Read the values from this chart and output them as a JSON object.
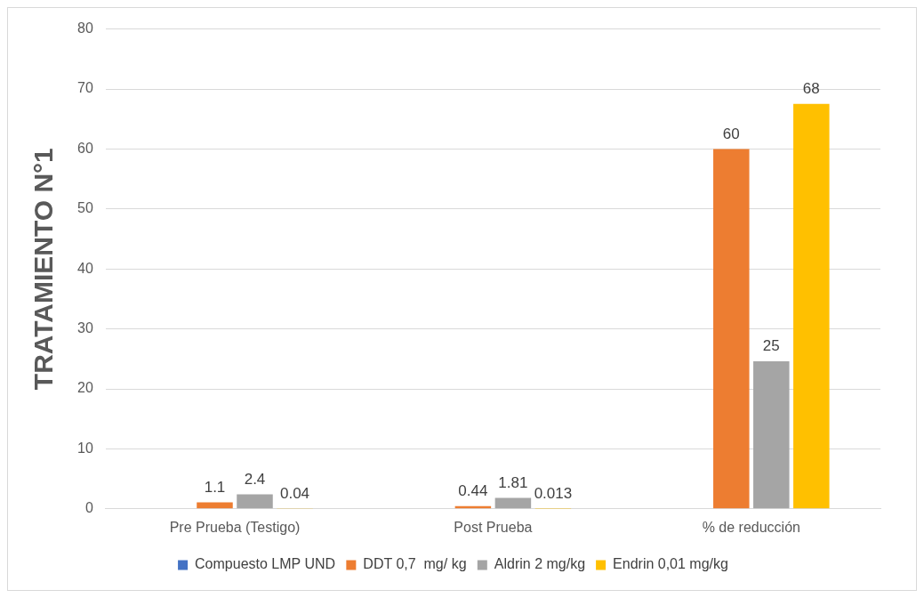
{
  "chart_data": {
    "type": "bar",
    "ylabel": "TRATAMIENTO N°1",
    "categories": [
      "Pre Prueba (Testigo)",
      "Post Prueba",
      "% de reducción"
    ],
    "series": [
      {
        "name": "Compuesto LMP UND",
        "color": "#4472c4",
        "values": [
          null,
          null,
          null
        ]
      },
      {
        "name": "DDT 0,7  mg/ kg",
        "color": "#ed7d31",
        "values": [
          1.1,
          0.44,
          60
        ],
        "value_labels": [
          "1.1",
          "0.44",
          "60"
        ]
      },
      {
        "name": "Aldrin 2 mg/kg",
        "color": "#a5a5a5",
        "values": [
          2.4,
          1.81,
          24.6
        ],
        "value_labels": [
          "2.4",
          "1.81",
          "25"
        ]
      },
      {
        "name": "Endrin 0,01 mg/kg",
        "color": "#ffc000",
        "values": [
          0.04,
          0.013,
          67.5
        ],
        "value_labels": [
          "0.04",
          "0.013",
          "68"
        ]
      }
    ],
    "ylim": [
      0,
      80
    ],
    "yticks": [
      0,
      10,
      20,
      30,
      40,
      50,
      60,
      70,
      80
    ],
    "grid": "y",
    "legend": "bottom"
  }
}
